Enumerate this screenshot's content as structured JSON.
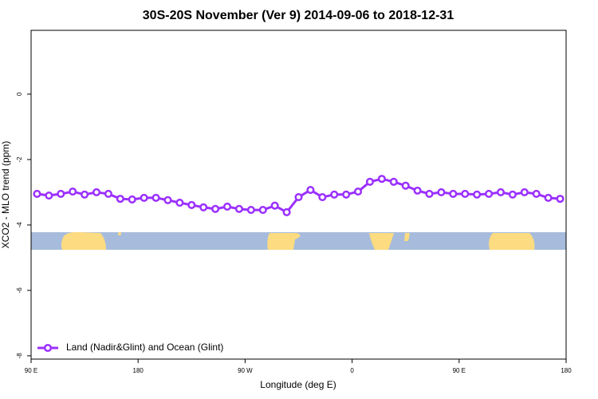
{
  "chart_data": {
    "type": "line",
    "title": "30S-20S November (Ver 9)   2014-09-06 to 2018-12-31",
    "x_label": "Longitude (deg E)",
    "y_label": "XCO2 - MLO trend (ppm)",
    "xlim": [
      90,
      540
    ],
    "xticks": [
      {
        "value": 90,
        "label": "90 E"
      },
      180,
      {
        "value": 270,
        "label": "90 W"
      },
      {
        "value": 360,
        "label": "0"
      },
      {
        "value": 450,
        "label": "90 E"
      },
      {
        "value": 540,
        "label": "180"
      }
    ],
    "ylim": [
      -8.1,
      1.95
    ],
    "yticks": [
      0,
      -2,
      -4,
      -6,
      -8
    ],
    "legend": "bottomleft",
    "x": [
      95,
      105,
      115,
      125,
      135,
      145,
      155,
      165,
      175,
      185,
      195,
      205,
      215,
      225,
      235,
      245,
      255,
      265,
      275,
      285,
      295,
      305,
      315,
      325,
      335,
      345,
      355,
      365,
      375,
      385,
      395,
      405,
      415,
      425,
      435,
      445,
      455,
      465,
      475,
      485,
      495,
      505,
      515,
      525,
      535
    ],
    "series": [
      {
        "name": "Land (Nadir&Glint) and Ocean (Glint)",
        "color": "#9b30ff",
        "values": [
          -3.05,
          -3.1,
          -3.05,
          -2.98,
          -3.07,
          -3.0,
          -3.05,
          -3.2,
          -3.22,
          -3.17,
          -3.17,
          -3.24,
          -3.32,
          -3.39,
          -3.46,
          -3.51,
          -3.44,
          -3.51,
          -3.54,
          -3.54,
          -3.41,
          -3.61,
          -3.15,
          -2.93,
          -3.15,
          -3.07,
          -3.07,
          -2.98,
          -2.68,
          -2.59,
          -2.68,
          -2.8,
          -2.95,
          -3.05,
          -3.0,
          -3.05,
          -3.05,
          -3.07,
          -3.05,
          -3.0,
          -3.07,
          -3.0,
          -3.05,
          -3.17,
          -3.2
        ]
      }
    ]
  }
}
